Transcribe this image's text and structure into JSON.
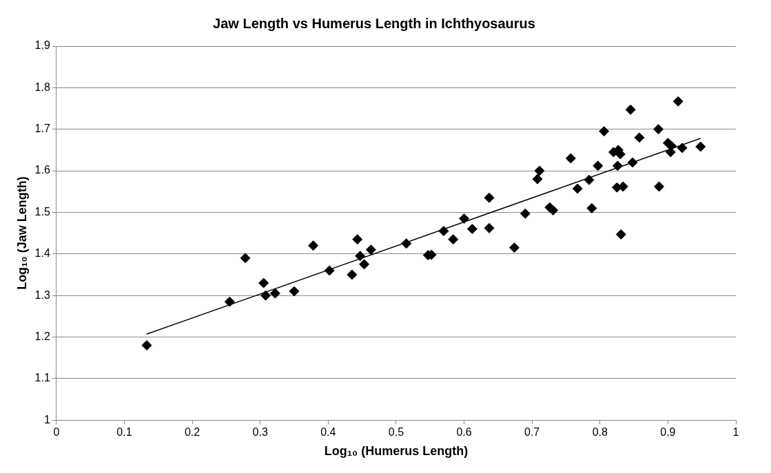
{
  "chart_data": {
    "type": "scatter",
    "title": "Jaw Length vs Humerus Length in Ichthyosaurus",
    "xlabel": "Log₁₀ (Humerus Length)",
    "ylabel": "Log₁₀ (Jaw Length)",
    "xlim": [
      0,
      1
    ],
    "xticks": [
      0,
      0.1,
      0.2,
      0.3,
      0.4,
      0.5,
      0.6,
      0.7,
      0.8,
      0.9,
      1
    ],
    "ylim": [
      1,
      1.9
    ],
    "yticks": [
      1,
      1.1,
      1.2,
      1.3,
      1.4,
      1.5,
      1.6,
      1.7,
      1.8,
      1.9
    ],
    "grid": "y",
    "legend": false,
    "series": [
      {
        "type": "scatter",
        "color": "#000000",
        "marker": "diamond",
        "x": [
          0.133,
          0.255,
          0.278,
          0.305,
          0.308,
          0.322,
          0.35,
          0.378,
          0.402,
          0.435,
          0.443,
          0.447,
          0.453,
          0.463,
          0.515,
          0.547,
          0.552,
          0.57,
          0.584,
          0.6,
          0.612,
          0.637,
          0.637,
          0.674,
          0.69,
          0.708,
          0.711,
          0.726,
          0.731,
          0.757,
          0.767,
          0.784,
          0.788,
          0.797,
          0.806,
          0.82,
          0.826,
          0.827,
          0.825,
          0.83,
          0.831,
          0.834,
          0.845,
          0.848,
          0.858,
          0.886,
          0.887,
          0.9,
          0.904,
          0.905,
          0.915,
          0.921,
          0.948
        ],
        "values": [
          1.18,
          1.285,
          1.39,
          1.33,
          1.3,
          1.305,
          1.31,
          1.42,
          1.36,
          1.35,
          1.435,
          1.395,
          1.375,
          1.41,
          1.425,
          1.397,
          1.398,
          1.455,
          1.435,
          1.485,
          1.46,
          1.535,
          1.462,
          1.415,
          1.497,
          1.58,
          1.6,
          1.512,
          1.505,
          1.63,
          1.557,
          1.578,
          1.51,
          1.612,
          1.695,
          1.645,
          1.612,
          1.65,
          1.56,
          1.64,
          1.447,
          1.562,
          1.747,
          1.62,
          1.68,
          1.7,
          1.562,
          1.667,
          1.645,
          1.66,
          1.767,
          1.655,
          1.658
        ]
      },
      {
        "type": "line",
        "color": "#000000",
        "marker": "none",
        "line_style": "solid",
        "x": [
          0.133,
          0.948
        ],
        "values": [
          1.207,
          1.678
        ]
      }
    ]
  }
}
